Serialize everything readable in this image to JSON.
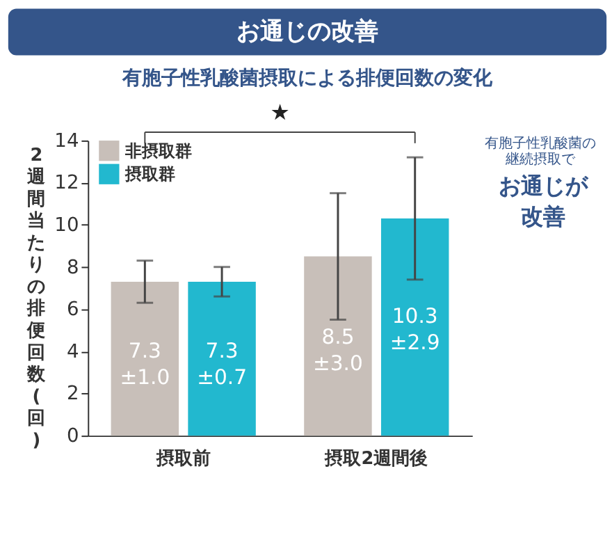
{
  "chart_data": {
    "type": "bar",
    "title": "お通じの改善",
    "subtitle": "有胞子性乳酸菌摂取による排便回数の変化",
    "ylabel": "2週間当たりの排便回数(回)",
    "categories": [
      "摂取前",
      "摂取2週間後"
    ],
    "series": [
      {
        "name": "非摂取群",
        "color": "#c8bfb9",
        "values": [
          7.3,
          8.5
        ],
        "errors": [
          1.0,
          3.0
        ],
        "value_labels": [
          "7.3\n±1.0",
          "8.5\n±3.0"
        ]
      },
      {
        "name": "摂取群",
        "color": "#22b8cf",
        "values": [
          7.3,
          10.3
        ],
        "errors": [
          0.7,
          2.9
        ],
        "value_labels": [
          "7.3\n±0.7",
          "10.3\n±2.9"
        ]
      }
    ],
    "ylim": [
      0,
      14
    ],
    "yticks": [
      0,
      2,
      4,
      6,
      8,
      10,
      12,
      14
    ],
    "grid": false,
    "legend": "top left",
    "annotations": [
      "★",
      "有胞子性乳酸菌の継続摂取で",
      "お通じが改善"
    ]
  }
}
